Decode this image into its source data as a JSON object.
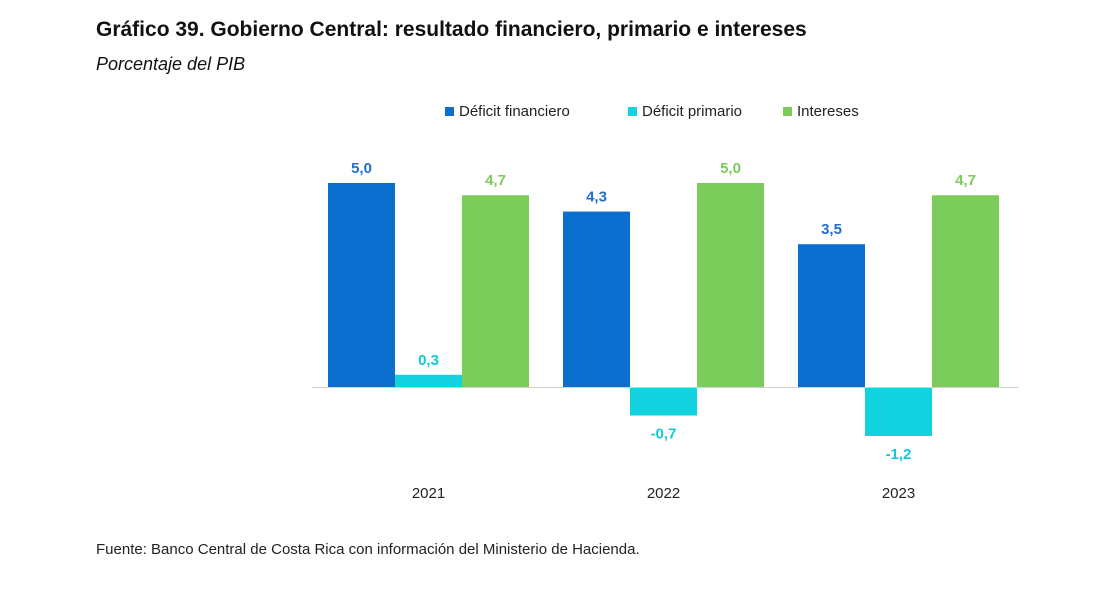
{
  "header": {
    "title": "Gráfico 39. Gobierno Central: resultado financiero, primario e intereses",
    "subtitle": "Porcentaje del PIB"
  },
  "footer": {
    "source": "Fuente: Banco Central de Costa Rica con información del Ministerio de Hacienda."
  },
  "chart_data": {
    "type": "bar",
    "title": "Gráfico 39. Gobierno Central: resultado financiero, primario e intereses",
    "subtitle": "Porcentaje del PIB",
    "xlabel": "",
    "ylabel": "",
    "categories": [
      "2021",
      "2022",
      "2023"
    ],
    "ylim": [
      -1.4,
      5.2
    ],
    "grid": false,
    "legend": "top-center",
    "series": [
      {
        "name": "Déficit financiero",
        "color": "#0a6fcf",
        "label_color": "#1f6fd1",
        "values": [
          5.0,
          4.3,
          3.5
        ],
        "labels": [
          "5,0",
          "4,3",
          "3,5"
        ]
      },
      {
        "name": "Déficit primario",
        "color": "#12d2e0",
        "label_color": "#12c9d9",
        "values": [
          0.3,
          -0.7,
          -1.2
        ],
        "labels": [
          "0,3",
          "-0,7",
          "-1,2"
        ]
      },
      {
        "name": "Intereses",
        "color": "#7ccc5c",
        "label_color": "#7ccc5c",
        "values": [
          4.7,
          5.0,
          4.7
        ],
        "labels": [
          "4,7",
          "5,0",
          "4,7"
        ]
      }
    ]
  }
}
